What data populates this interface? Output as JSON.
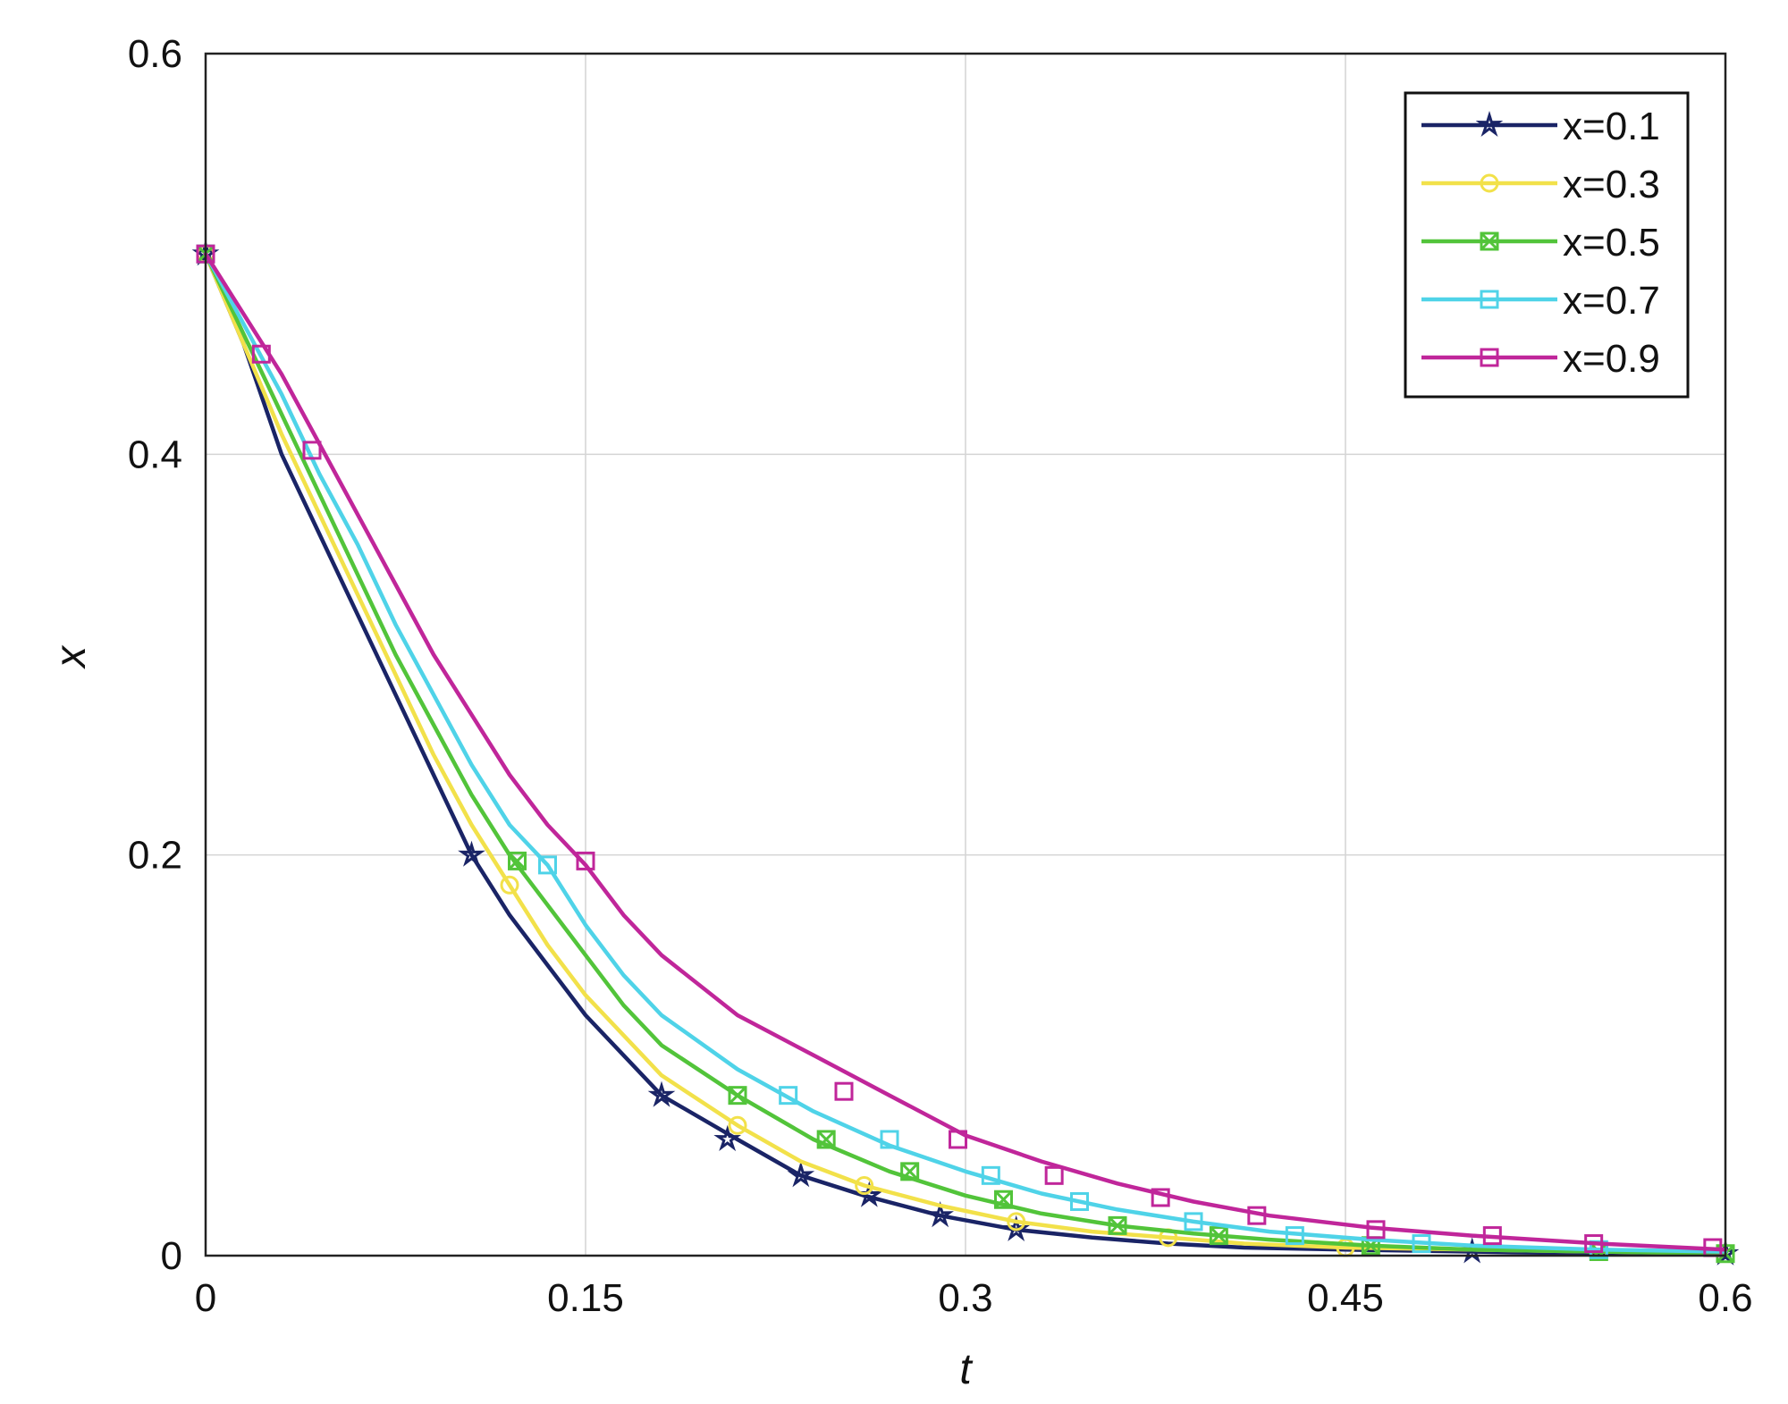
{
  "chart_data": {
    "type": "line",
    "title": "",
    "xlabel": "t",
    "ylabel": "x",
    "xlim": [
      0,
      0.6
    ],
    "ylim": [
      0,
      0.6
    ],
    "xticks": [
      "0",
      "0.15",
      "0.3",
      "0.45",
      "0.6"
    ],
    "yticks": [
      "0",
      "0.2",
      "0.4",
      "0.6"
    ],
    "xtick_values": [
      0,
      0.15,
      0.3,
      0.45,
      0.6
    ],
    "ytick_values": [
      0,
      0.2,
      0.4,
      0.6
    ],
    "grid": true,
    "legend_position": "top-right",
    "series": [
      {
        "name": "x=0.1",
        "color": "#1a2466",
        "marker": "star",
        "x": [
          0,
          0.015,
          0.03,
          0.045,
          0.06,
          0.075,
          0.09,
          0.105,
          0.12,
          0.135,
          0.15,
          0.165,
          0.18,
          0.21,
          0.235,
          0.26,
          0.29,
          0.32,
          0.35,
          0.38,
          0.41,
          0.45,
          0.5,
          0.55,
          0.6
        ],
        "y": [
          0.5,
          0.455,
          0.4,
          0.36,
          0.32,
          0.28,
          0.24,
          0.2,
          0.17,
          0.145,
          0.12,
          0.1,
          0.08,
          0.058,
          0.04,
          0.03,
          0.02,
          0.013,
          0.009,
          0.006,
          0.004,
          0.003,
          0.002,
          0.001,
          0.001
        ],
        "marker_x": [
          0,
          0.105,
          0.18,
          0.206,
          0.235,
          0.262,
          0.29,
          0.32,
          0.5,
          0.6
        ],
        "marker_y": [
          0.5,
          0.2,
          0.08,
          0.058,
          0.04,
          0.03,
          0.02,
          0.013,
          0.002,
          0.001
        ]
      },
      {
        "name": "x=0.3",
        "color": "#f2e14a",
        "marker": "circle",
        "x": [
          0,
          0.015,
          0.03,
          0.045,
          0.06,
          0.075,
          0.09,
          0.105,
          0.12,
          0.135,
          0.15,
          0.165,
          0.18,
          0.21,
          0.235,
          0.26,
          0.29,
          0.32,
          0.35,
          0.38,
          0.41,
          0.45,
          0.5,
          0.55,
          0.6
        ],
        "y": [
          0.5,
          0.455,
          0.41,
          0.37,
          0.33,
          0.29,
          0.25,
          0.215,
          0.185,
          0.155,
          0.13,
          0.11,
          0.09,
          0.065,
          0.047,
          0.035,
          0.025,
          0.017,
          0.012,
          0.009,
          0.006,
          0.004,
          0.003,
          0.002,
          0.001
        ],
        "marker_x": [
          0,
          0.12,
          0.21,
          0.26,
          0.32,
          0.38,
          0.45,
          0.55
        ],
        "marker_y": [
          0.5,
          0.185,
          0.065,
          0.035,
          0.017,
          0.009,
          0.004,
          0.002
        ]
      },
      {
        "name": "x=0.5",
        "color": "#52c43a",
        "marker": "square-x",
        "x": [
          0,
          0.015,
          0.03,
          0.045,
          0.06,
          0.075,
          0.09,
          0.105,
          0.12,
          0.135,
          0.15,
          0.165,
          0.18,
          0.21,
          0.24,
          0.27,
          0.3,
          0.33,
          0.36,
          0.39,
          0.42,
          0.46,
          0.5,
          0.55,
          0.6
        ],
        "y": [
          0.5,
          0.46,
          0.42,
          0.38,
          0.34,
          0.3,
          0.265,
          0.23,
          0.2,
          0.175,
          0.15,
          0.125,
          0.105,
          0.08,
          0.058,
          0.042,
          0.03,
          0.021,
          0.015,
          0.011,
          0.008,
          0.005,
          0.003,
          0.002,
          0.001
        ],
        "marker_x": [
          0,
          0.123,
          0.21,
          0.245,
          0.278,
          0.315,
          0.36,
          0.4,
          0.46,
          0.55,
          0.6
        ],
        "marker_y": [
          0.5,
          0.197,
          0.08,
          0.058,
          0.042,
          0.028,
          0.015,
          0.01,
          0.005,
          0.002,
          0.001
        ]
      },
      {
        "name": "x=0.7",
        "color": "#4fd3e8",
        "marker": "square",
        "x": [
          0,
          0.015,
          0.03,
          0.045,
          0.06,
          0.075,
          0.09,
          0.105,
          0.12,
          0.135,
          0.15,
          0.165,
          0.18,
          0.21,
          0.24,
          0.27,
          0.3,
          0.33,
          0.36,
          0.39,
          0.42,
          0.46,
          0.5,
          0.55,
          0.6
        ],
        "y": [
          0.5,
          0.465,
          0.43,
          0.39,
          0.355,
          0.315,
          0.28,
          0.245,
          0.215,
          0.195,
          0.165,
          0.14,
          0.12,
          0.093,
          0.072,
          0.055,
          0.042,
          0.031,
          0.023,
          0.017,
          0.012,
          0.008,
          0.005,
          0.003,
          0.002
        ],
        "marker_x": [
          0,
          0.135,
          0.23,
          0.27,
          0.31,
          0.345,
          0.39,
          0.43,
          0.48,
          0.55
        ],
        "marker_y": [
          0.5,
          0.195,
          0.08,
          0.058,
          0.04,
          0.027,
          0.017,
          0.01,
          0.006,
          0.003
        ]
      },
      {
        "name": "x=0.9",
        "color": "#c0269a",
        "marker": "square",
        "x": [
          0,
          0.015,
          0.03,
          0.045,
          0.06,
          0.075,
          0.09,
          0.105,
          0.12,
          0.135,
          0.15,
          0.165,
          0.18,
          0.21,
          0.24,
          0.27,
          0.3,
          0.33,
          0.36,
          0.39,
          0.42,
          0.46,
          0.5,
          0.55,
          0.6
        ],
        "y": [
          0.5,
          0.47,
          0.44,
          0.405,
          0.37,
          0.335,
          0.3,
          0.27,
          0.24,
          0.215,
          0.195,
          0.17,
          0.15,
          0.12,
          0.1,
          0.08,
          0.06,
          0.047,
          0.036,
          0.027,
          0.02,
          0.014,
          0.01,
          0.006,
          0.003
        ],
        "marker_x": [
          0,
          0.022,
          0.042,
          0.15,
          0.252,
          0.297,
          0.335,
          0.377,
          0.415,
          0.462,
          0.508,
          0.548,
          0.595
        ],
        "marker_y": [
          0.5,
          0.45,
          0.402,
          0.197,
          0.082,
          0.058,
          0.04,
          0.029,
          0.02,
          0.013,
          0.01,
          0.006,
          0.004
        ]
      }
    ]
  }
}
